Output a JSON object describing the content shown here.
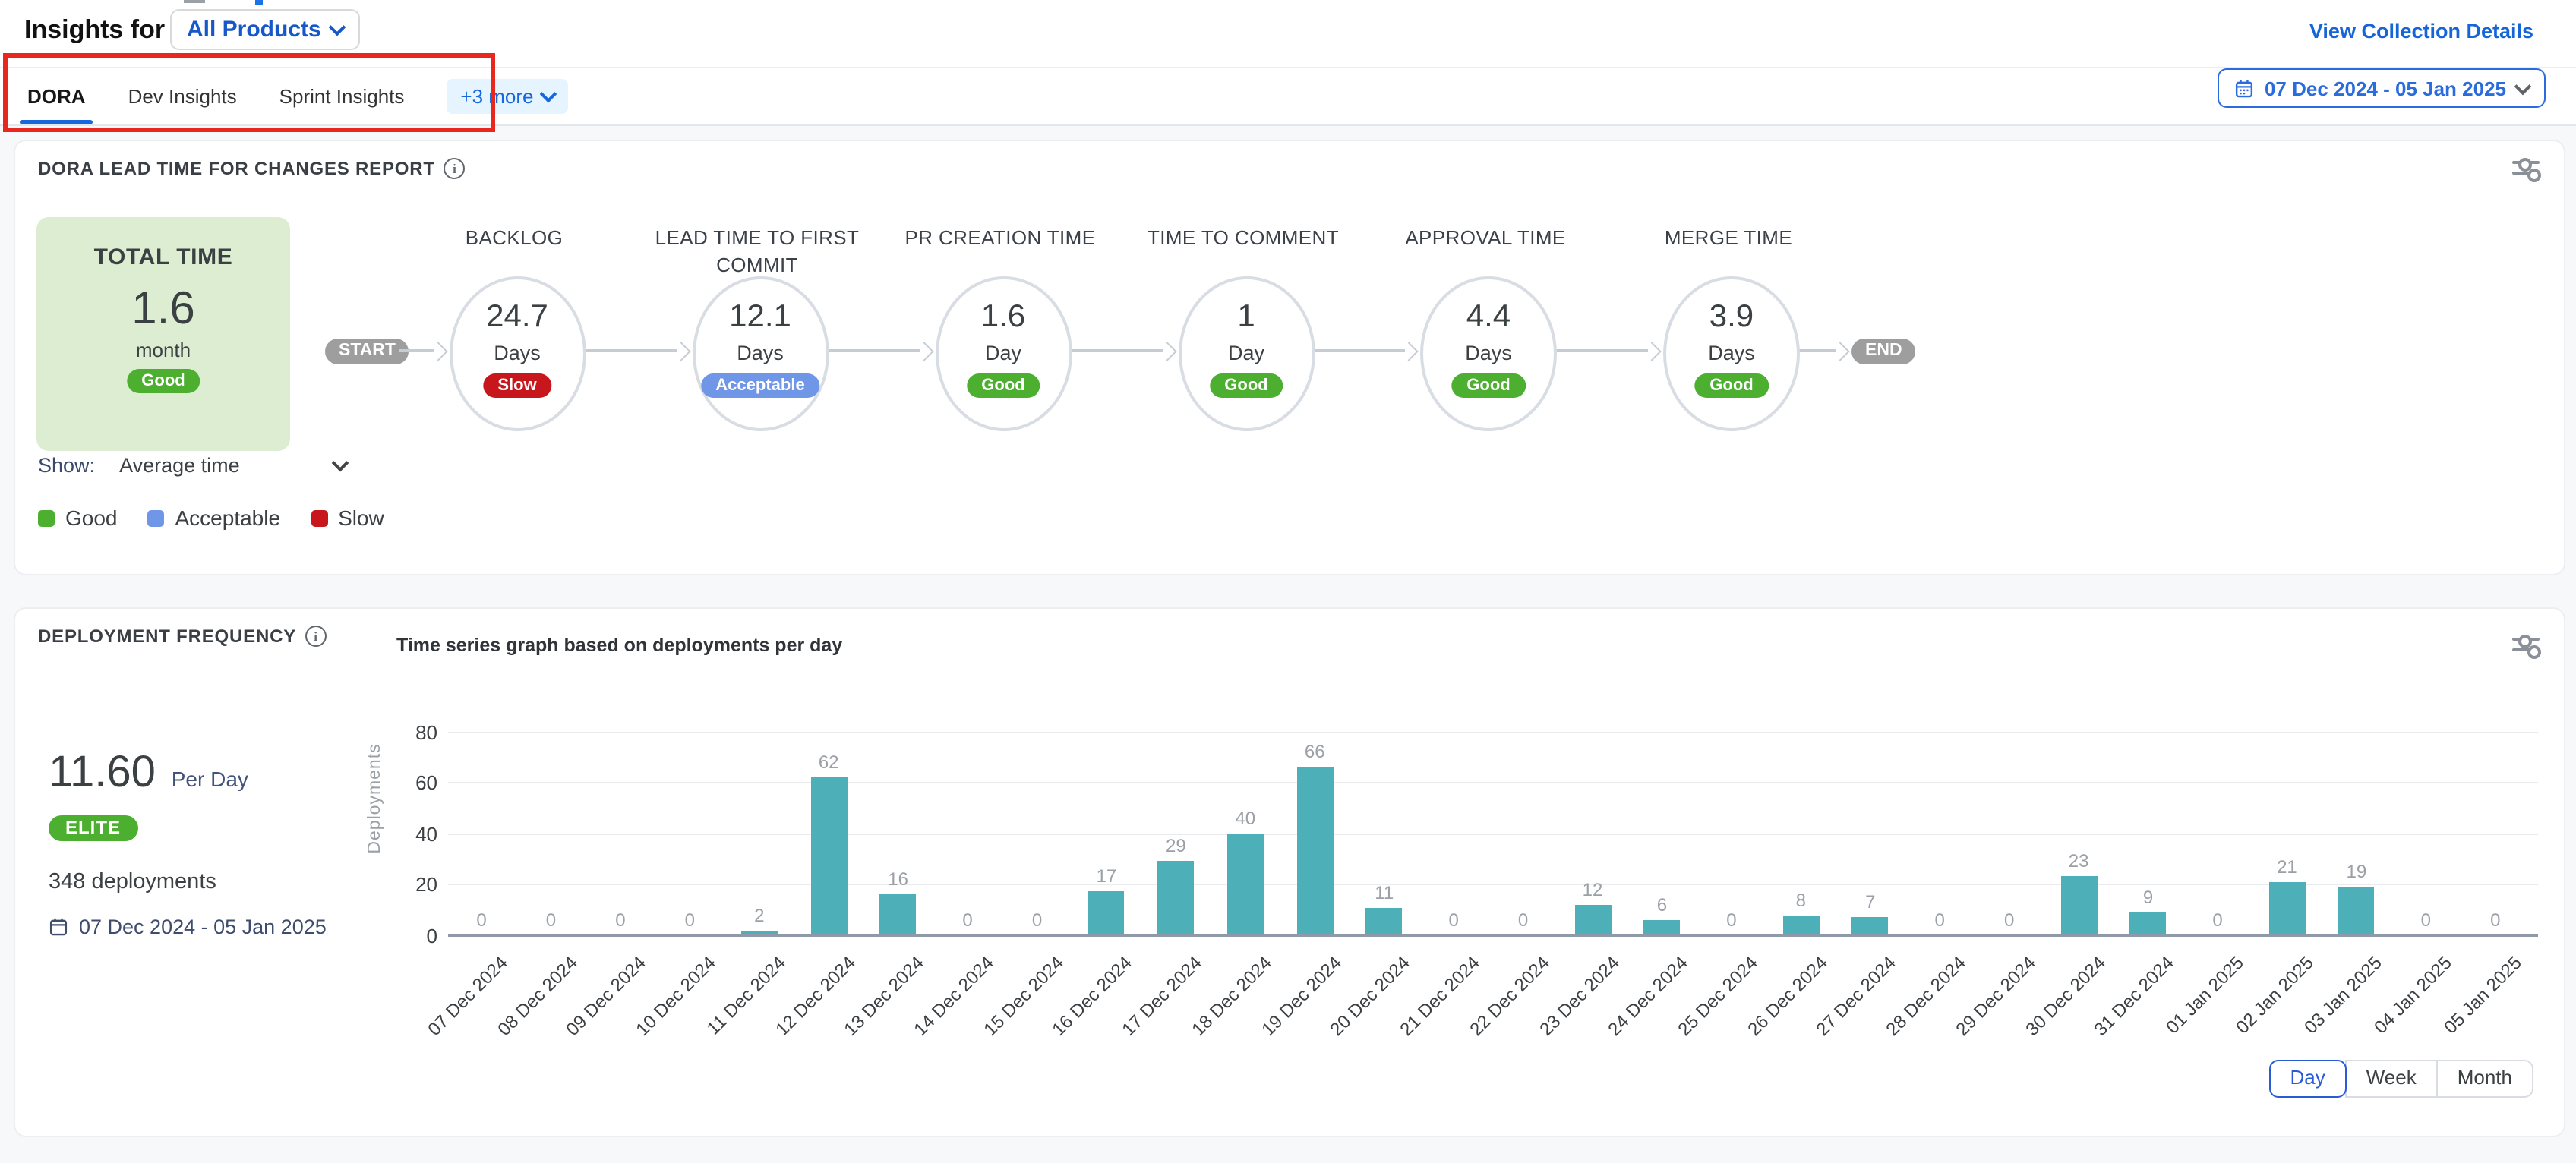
{
  "header": {
    "title": "Insights for",
    "product_selector": "All Products",
    "view_collection_details": "View Collection Details",
    "date_range": "07 Dec 2024 - 05 Jan 2025"
  },
  "tabs": {
    "items": [
      {
        "label": "DORA",
        "active": true
      },
      {
        "label": "Dev Insights",
        "active": false
      },
      {
        "label": "Sprint Insights",
        "active": false
      }
    ],
    "more_label": "+3 more"
  },
  "colors": {
    "primary_blue": "#1668dc",
    "link_blue": "#1565d8",
    "annotation_red": "#e8281e",
    "teal_bar": "#4db0b8",
    "good_green": "#4caf30",
    "acceptable_blue": "#7096e8",
    "slow_red": "#c8161d",
    "elite_green": "#4caf30",
    "total_box_green": "#ddedd2"
  },
  "lead_time_card": {
    "title": "DORA LEAD TIME FOR CHANGES REPORT",
    "total": {
      "label": "TOTAL TIME",
      "value": "1.6",
      "unit": "month",
      "rating": "Good"
    },
    "start_label": "START",
    "end_label": "END",
    "stages": [
      {
        "name": "BACKLOG",
        "value": "24.7",
        "unit": "Days",
        "rating": "Slow"
      },
      {
        "name": "LEAD TIME TO FIRST COMMIT",
        "value": "12.1",
        "unit": "Days",
        "rating": "Acceptable"
      },
      {
        "name": "PR CREATION TIME",
        "value": "1.6",
        "unit": "Day",
        "rating": "Good"
      },
      {
        "name": "TIME TO COMMENT",
        "value": "1",
        "unit": "Day",
        "rating": "Good"
      },
      {
        "name": "APPROVAL TIME",
        "value": "4.4",
        "unit": "Days",
        "rating": "Good"
      },
      {
        "name": "MERGE TIME",
        "value": "3.9",
        "unit": "Days",
        "rating": "Good"
      }
    ],
    "rating_colors": {
      "Good": "#4caf30",
      "Acceptable": "#7096e8",
      "Slow": "#c8161d"
    },
    "show_label": "Show:",
    "show_value": "Average time",
    "legend": [
      {
        "label": "Good",
        "color": "#4caf30"
      },
      {
        "label": "Acceptable",
        "color": "#7096e8"
      },
      {
        "label": "Slow",
        "color": "#c8161d"
      }
    ]
  },
  "deployment_card": {
    "title": "DEPLOYMENT FREQUENCY",
    "chart_title": "Time series graph based on deployments per day",
    "rate": "11.60",
    "rate_unit": "Per Day",
    "tier": "ELITE",
    "total_deployments": "348 deployments",
    "date_range": "07 Dec 2024 - 05 Jan 2025",
    "granularity": [
      "Day",
      "Week",
      "Month"
    ],
    "granularity_active": "Day"
  },
  "chart_data": {
    "type": "bar",
    "title": "Time series graph based on deployments per day",
    "xlabel": "",
    "ylabel": "Deployments",
    "ylim": [
      0,
      80
    ],
    "yticks": [
      0,
      20,
      40,
      60,
      80
    ],
    "grid": true,
    "legend_position": "none",
    "bar_color": "#4db0b8",
    "categories": [
      "07 Dec 2024",
      "08 Dec 2024",
      "09 Dec 2024",
      "10 Dec 2024",
      "11 Dec 2024",
      "12 Dec 2024",
      "13 Dec 2024",
      "14 Dec 2024",
      "15 Dec 2024",
      "16 Dec 2024",
      "17 Dec 2024",
      "18 Dec 2024",
      "19 Dec 2024",
      "20 Dec 2024",
      "21 Dec 2024",
      "22 Dec 2024",
      "23 Dec 2024",
      "24 Dec 2024",
      "25 Dec 2024",
      "26 Dec 2024",
      "27 Dec 2024",
      "28 Dec 2024",
      "29 Dec 2024",
      "30 Dec 2024",
      "31 Dec 2024",
      "01 Jan 2025",
      "02 Jan 2025",
      "03 Jan 2025",
      "04 Jan 2025",
      "05 Jan 2025"
    ],
    "values": [
      0,
      0,
      0,
      0,
      2,
      62,
      16,
      0,
      0,
      17,
      29,
      40,
      66,
      11,
      0,
      0,
      12,
      6,
      0,
      8,
      7,
      0,
      0,
      23,
      9,
      0,
      21,
      19,
      0,
      0
    ]
  }
}
